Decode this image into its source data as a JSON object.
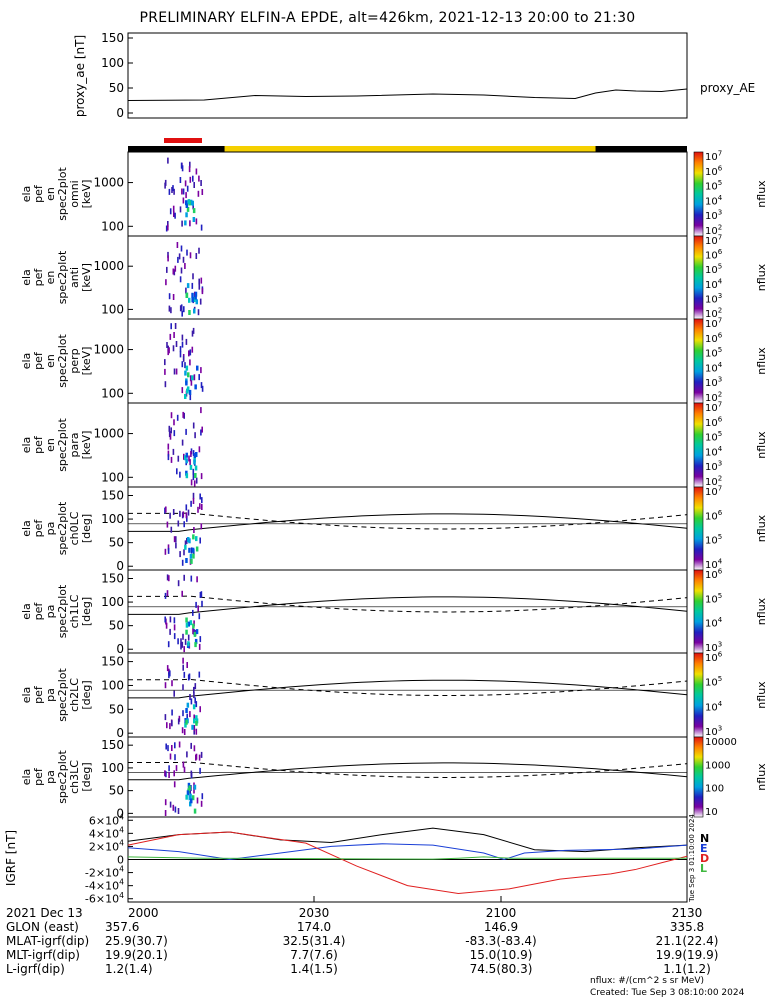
{
  "title": "PRELIMINARY ELFIN-A EPDE, alt=426km, 2021-12-13 20:00 to 21:30",
  "colors": {
    "axis": "#000000",
    "igrf_n": "#000000",
    "igrf_e": "#1a3fd6",
    "igrf_d": "#e02020",
    "igrf_l": "#3fb83f",
    "science_bar": "#e01010",
    "sunlit_bar": "#f5d000",
    "shadow_bar": "#000000"
  },
  "chart_data": [
    {
      "type": "line",
      "panel": "proxy_ae",
      "ylabel": "proxy_ae [nT]",
      "legend": "proxy_AE",
      "yticks": [
        "0",
        "50",
        "100",
        "150"
      ],
      "ylim": [
        -10,
        160
      ],
      "x_minutes": [
        0,
        15,
        25,
        35,
        45,
        60,
        70,
        80,
        88,
        92,
        96,
        100,
        105,
        110
      ],
      "values": [
        25,
        26,
        35,
        33,
        34,
        38,
        36,
        31,
        29,
        40,
        46,
        44,
        43,
        48
      ]
    },
    {
      "type": "heatmap",
      "panel": "omni",
      "ylabel": [
        "ela",
        "pef",
        "en",
        "spec2plot",
        "omni",
        "[keV]"
      ],
      "yticks": [
        "100",
        "1000"
      ],
      "colorbar": {
        "label": "nflux",
        "ticks": [
          "10^2",
          "10^3",
          "10^4",
          "10^5",
          "10^6",
          "10^7"
        ]
      }
    },
    {
      "type": "heatmap",
      "panel": "anti",
      "ylabel": [
        "ela",
        "pef",
        "en",
        "spec2plot",
        "anti",
        "[keV]"
      ],
      "yticks": [
        "100",
        "1000"
      ],
      "colorbar": {
        "label": "nflux",
        "ticks": [
          "10^2",
          "10^3",
          "10^4",
          "10^5",
          "10^6",
          "10^7"
        ]
      }
    },
    {
      "type": "heatmap",
      "panel": "perp",
      "ylabel": [
        "ela",
        "pef",
        "en",
        "spec2plot",
        "perp",
        "[keV]"
      ],
      "yticks": [
        "100",
        "1000"
      ],
      "colorbar": {
        "label": "nflux",
        "ticks": [
          "10^2",
          "10^3",
          "10^4",
          "10^5",
          "10^6",
          "10^7"
        ]
      }
    },
    {
      "type": "heatmap",
      "panel": "para",
      "ylabel": [
        "ela",
        "pef",
        "en",
        "spec2plot",
        "para",
        "[keV]"
      ],
      "yticks": [
        "100",
        "1000"
      ],
      "colorbar": {
        "label": "nflux",
        "ticks": [
          "10^2",
          "10^3",
          "10^4",
          "10^5",
          "10^6",
          "10^7"
        ]
      }
    },
    {
      "type": "heatmap",
      "panel": "ch0LC",
      "ylabel": [
        "ela",
        "pef",
        "pa",
        "spec2plot",
        "ch0LC",
        "[deg]"
      ],
      "yticks": [
        "0",
        "50",
        "100",
        "150"
      ],
      "colorbar": {
        "label": "nflux",
        "ticks": [
          "10^4",
          "10^5",
          "10^6",
          "10^7"
        ]
      }
    },
    {
      "type": "heatmap",
      "panel": "ch1LC",
      "ylabel": [
        "ela",
        "pef",
        "pa",
        "spec2plot",
        "ch1LC",
        "[deg]"
      ],
      "yticks": [
        "0",
        "50",
        "100",
        "150"
      ],
      "colorbar": {
        "label": "nflux",
        "ticks": [
          "10^3",
          "10^4",
          "10^5",
          "10^6"
        ]
      }
    },
    {
      "type": "heatmap",
      "panel": "ch2LC",
      "ylabel": [
        "ela",
        "pef",
        "pa",
        "spec2plot",
        "ch2LC",
        "[deg]"
      ],
      "yticks": [
        "0",
        "50",
        "100",
        "150"
      ],
      "colorbar": {
        "label": "nflux",
        "ticks": [
          "10^3",
          "10^4",
          "10^5",
          "10^6"
        ]
      }
    },
    {
      "type": "heatmap",
      "panel": "ch3LC",
      "ylabel": [
        "ela",
        "pef",
        "pa",
        "spec2plot",
        "ch3LC",
        "[deg]"
      ],
      "yticks": [
        "0",
        "50",
        "100",
        "150"
      ],
      "colorbar": {
        "label": "nflux",
        "ticks": [
          "10",
          "100",
          "1000",
          "10000"
        ]
      }
    },
    {
      "type": "line",
      "panel": "igrf",
      "ylabel": "IGRF [nT]",
      "yticks": [
        "-6×10^4",
        "-4×10^4",
        "-2×10^4",
        "0",
        "2×10^4",
        "4×10^4",
        "6×10^4"
      ],
      "ylim": [
        -65000,
        65000
      ],
      "legend": [
        "N",
        "E",
        "D",
        "L"
      ],
      "series": [
        {
          "name": "N",
          "x_minutes": [
            0,
            10,
            20,
            30,
            40,
            50,
            60,
            70,
            80,
            90,
            100,
            110
          ],
          "values": [
            28000,
            38000,
            42000,
            30000,
            26000,
            38000,
            48000,
            38000,
            15000,
            12000,
            18000,
            22000
          ]
        },
        {
          "name": "E",
          "x_minutes": [
            0,
            10,
            20,
            30,
            40,
            50,
            60,
            70,
            74,
            78,
            86,
            100,
            110
          ],
          "values": [
            18000,
            12000,
            0,
            10000,
            20000,
            24000,
            22000,
            10000,
            0,
            10000,
            14000,
            16000,
            22000
          ]
        },
        {
          "name": "D",
          "x_minutes": [
            0,
            10,
            20,
            35,
            45,
            55,
            65,
            75,
            85,
            95,
            100,
            105,
            110
          ],
          "values": [
            22000,
            38000,
            42000,
            25000,
            -10000,
            -40000,
            -52000,
            -45000,
            -30000,
            -22000,
            -15000,
            -5000,
            5000
          ]
        },
        {
          "name": "L",
          "x_minutes": [
            0,
            15,
            30,
            45,
            60,
            65,
            70,
            75,
            80,
            90,
            100,
            110
          ],
          "values": [
            4000,
            2000,
            1500,
            1000,
            500,
            2000,
            4000,
            2000,
            2000,
            2000,
            2000,
            2000
          ]
        }
      ]
    }
  ],
  "axis": {
    "date_label": "2021 Dec 13",
    "ticks": [
      "2000",
      "2030",
      "2100",
      "2130"
    ]
  },
  "footer_rows": [
    {
      "label": "GLON (east)",
      "values": [
        "357.6",
        "174.0",
        "146.9",
        "335.8"
      ]
    },
    {
      "label": "MLAT-igrf(dip)",
      "values": [
        "25.9(30.7)",
        "32.5(31.4)",
        "-83.3(-83.4)",
        "21.1(22.4)"
      ]
    },
    {
      "label": "MLT-igrf(dip)",
      "values": [
        "19.9(20.1)",
        "7.7(7.6)",
        "15.0(10.9)",
        "19.9(19.9)"
      ]
    },
    {
      "label": "L-igrf(dip)",
      "values": [
        "1.2(1.4)",
        "1.4(1.5)",
        "74.5(80.3)",
        "1.1(1.2)"
      ]
    }
  ],
  "notes": {
    "units": "nflux: #/(cm^2 s sr MeV)",
    "created": "Created: Tue Sep  3 08:10:00 2024",
    "side_stamp": "Tue Sep  3 01:10:00 2024"
  }
}
